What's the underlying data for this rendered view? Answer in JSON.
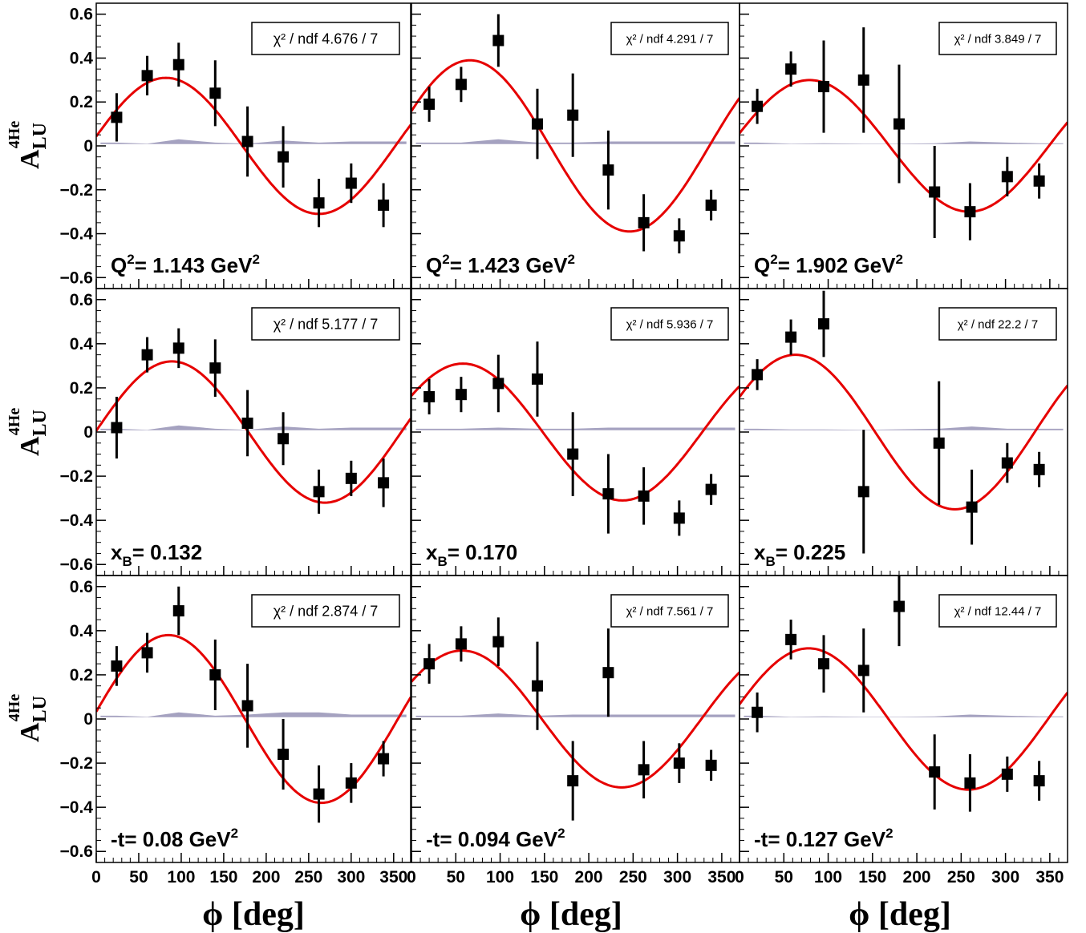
{
  "figure": {
    "x_axis_label": "ϕ [deg]",
    "y_axis_label": {
      "main": "A",
      "sub": "LU",
      "sup": "4He"
    }
  },
  "colors": {
    "fit": "#e60000",
    "points": "#000000",
    "systematics": "#a5a2c0",
    "frame": "#000000",
    "box_border": "#000000"
  },
  "chart_data": [
    {
      "type": "scatter",
      "row": 0,
      "col": 0,
      "bin_label": {
        "main": "Q",
        "sup": "2",
        "text": "= 1.143 GeV",
        "sup2": "2"
      },
      "fit_stat": {
        "label": "χ² / ndf",
        "value": "4.676 / 7"
      },
      "xlim": [
        0,
        370
      ],
      "ylim": [
        -0.65,
        0.65
      ],
      "x_ticks": [
        0,
        50,
        100,
        150,
        200,
        250,
        300,
        350
      ],
      "y_ticks": [
        -0.6,
        -0.4,
        -0.2,
        0,
        0.2,
        0.4,
        0.6
      ],
      "x": [
        24,
        60,
        97,
        140,
        178,
        220,
        262,
        300,
        338
      ],
      "y": [
        0.13,
        0.32,
        0.37,
        0.24,
        0.02,
        -0.05,
        -0.26,
        -0.17,
        -0.27
      ],
      "yerr": [
        0.11,
        0.09,
        0.1,
        0.15,
        0.16,
        0.14,
        0.11,
        0.09,
        0.1
      ],
      "fit": {
        "amplitude": 0.31,
        "peak_deg": 82
      },
      "systematics": [
        0.015,
        0.01,
        0.03,
        0.015,
        0.01,
        0.025,
        0.015,
        0.02,
        0.02
      ]
    },
    {
      "type": "scatter",
      "row": 0,
      "col": 1,
      "bin_label": {
        "main": "Q",
        "sup": "2",
        "text": "= 1.423 GeV",
        "sup2": "2"
      },
      "fit_stat": {
        "label": "χ² / ndf",
        "value": "4.291 / 7"
      },
      "xlim": [
        0,
        370
      ],
      "ylim": [
        -0.65,
        0.65
      ],
      "x_ticks": [
        0,
        50,
        100,
        150,
        200,
        250,
        300,
        350
      ],
      "y_ticks": [
        -0.6,
        -0.4,
        -0.2,
        0,
        0.2,
        0.4,
        0.6
      ],
      "x": [
        20,
        56,
        98,
        142,
        182,
        222,
        262,
        302,
        338
      ],
      "y": [
        0.19,
        0.28,
        0.48,
        0.1,
        0.14,
        -0.11,
        -0.35,
        -0.41,
        -0.27
      ],
      "yerr": [
        0.08,
        0.08,
        0.12,
        0.16,
        0.19,
        0.18,
        0.13,
        0.08,
        0.07
      ],
      "fit": {
        "amplitude": 0.39,
        "peak_deg": 66
      },
      "systematics": [
        0.015,
        0.015,
        0.03,
        0.015,
        0.015,
        0.02,
        0.02,
        0.02,
        0.02
      ]
    },
    {
      "type": "scatter",
      "row": 0,
      "col": 2,
      "bin_label": {
        "main": "Q",
        "sup": "2",
        "text": "= 1.902 GeV",
        "sup2": "2"
      },
      "fit_stat": {
        "label": "χ² / ndf",
        "value": "3.849 / 7"
      },
      "xlim": [
        0,
        370
      ],
      "ylim": [
        -0.65,
        0.65
      ],
      "x_ticks": [
        0,
        50,
        100,
        150,
        200,
        250,
        300,
        350
      ],
      "y_ticks": [
        -0.6,
        -0.4,
        -0.2,
        0,
        0.2,
        0.4,
        0.6
      ],
      "x": [
        20,
        58,
        95,
        140,
        180,
        220,
        260,
        302,
        338
      ],
      "y": [
        0.18,
        0.35,
        0.27,
        0.3,
        0.1,
        -0.21,
        -0.3,
        -0.14,
        -0.16
      ],
      "yerr": [
        0.08,
        0.08,
        0.21,
        0.24,
        0.27,
        0.21,
        0.13,
        0.09,
        0.08
      ],
      "fit": {
        "amplitude": 0.3,
        "peak_deg": 79
      },
      "systematics": [
        0.015,
        0.01,
        0.012,
        0.01,
        0.01,
        0.012,
        0.02,
        0.015,
        0.012
      ]
    },
    {
      "type": "scatter",
      "row": 1,
      "col": 0,
      "bin_label": {
        "main": "x",
        "sub": "B",
        "text": "= 0.132"
      },
      "fit_stat": {
        "label": "χ² / ndf",
        "value": "5.177 / 7"
      },
      "xlim": [
        0,
        370
      ],
      "ylim": [
        -0.65,
        0.65
      ],
      "x_ticks": [
        0,
        50,
        100,
        150,
        200,
        250,
        300,
        350
      ],
      "y_ticks": [
        -0.6,
        -0.4,
        -0.2,
        0,
        0.2,
        0.4,
        0.6
      ],
      "x": [
        24,
        60,
        97,
        140,
        178,
        220,
        262,
        300,
        338
      ],
      "y": [
        0.02,
        0.35,
        0.38,
        0.29,
        0.04,
        -0.03,
        -0.27,
        -0.21,
        -0.23
      ],
      "yerr": [
        0.14,
        0.08,
        0.09,
        0.13,
        0.15,
        0.12,
        0.1,
        0.08,
        0.11
      ],
      "fit": {
        "amplitude": 0.32,
        "peak_deg": 89
      },
      "systematics": [
        0.015,
        0.01,
        0.03,
        0.015,
        0.01,
        0.025,
        0.015,
        0.02,
        0.02
      ]
    },
    {
      "type": "scatter",
      "row": 1,
      "col": 1,
      "bin_label": {
        "main": "x",
        "sub": "B",
        "text": "= 0.170"
      },
      "fit_stat": {
        "label": "χ² / ndf",
        "value": "5.936 / 7"
      },
      "xlim": [
        0,
        370
      ],
      "ylim": [
        -0.65,
        0.65
      ],
      "x_ticks": [
        0,
        50,
        100,
        150,
        200,
        250,
        300,
        350
      ],
      "y_ticks": [
        -0.6,
        -0.4,
        -0.2,
        0,
        0.2,
        0.4,
        0.6
      ],
      "x": [
        20,
        56,
        98,
        142,
        182,
        222,
        262,
        302,
        338
      ],
      "y": [
        0.16,
        0.17,
        0.22,
        0.24,
        -0.1,
        -0.28,
        -0.29,
        -0.39,
        -0.26
      ],
      "yerr": [
        0.08,
        0.08,
        0.13,
        0.17,
        0.19,
        0.18,
        0.13,
        0.08,
        0.07
      ],
      "fit": {
        "amplitude": 0.31,
        "peak_deg": 58
      },
      "systematics": [
        0.015,
        0.015,
        0.02,
        0.015,
        0.015,
        0.02,
        0.02,
        0.02,
        0.02
      ]
    },
    {
      "type": "scatter",
      "row": 1,
      "col": 2,
      "bin_label": {
        "main": "x",
        "sub": "B",
        "text": "= 0.225"
      },
      "fit_stat": {
        "label": "χ² / ndf",
        "value": "22.2 / 7"
      },
      "xlim": [
        0,
        370
      ],
      "ylim": [
        -0.65,
        0.65
      ],
      "x_ticks": [
        0,
        50,
        100,
        150,
        200,
        250,
        300,
        350
      ],
      "y_ticks": [
        -0.6,
        -0.4,
        -0.2,
        0,
        0.2,
        0.4,
        0.6
      ],
      "x": [
        20,
        58,
        95,
        140,
        225,
        262,
        302,
        338
      ],
      "y": [
        0.26,
        0.43,
        0.49,
        -0.27,
        -0.05,
        -0.34,
        -0.14,
        -0.17
      ],
      "yerr": [
        0.07,
        0.08,
        0.15,
        0.28,
        0.28,
        0.17,
        0.09,
        0.08
      ],
      "fit": {
        "amplitude": 0.35,
        "peak_deg": 63
      },
      "systematics": [
        0.015,
        0.012,
        0.012,
        0.01,
        0.015,
        0.025,
        0.015,
        0.015
      ]
    },
    {
      "type": "scatter",
      "row": 2,
      "col": 0,
      "bin_label": {
        "main": "-t",
        "text": "= 0.08 GeV",
        "sup2": "2"
      },
      "fit_stat": {
        "label": "χ² / ndf",
        "value": "2.874 / 7"
      },
      "xlim": [
        0,
        370
      ],
      "ylim": [
        -0.65,
        0.65
      ],
      "x_ticks": [
        0,
        50,
        100,
        150,
        200,
        250,
        300,
        350
      ],
      "y_ticks": [
        -0.6,
        -0.4,
        -0.2,
        0,
        0.2,
        0.4,
        0.6
      ],
      "x": [
        24,
        60,
        97,
        140,
        178,
        220,
        262,
        300,
        338
      ],
      "y": [
        0.24,
        0.3,
        0.49,
        0.2,
        0.06,
        -0.16,
        -0.34,
        -0.29,
        -0.18
      ],
      "yerr": [
        0.09,
        0.09,
        0.11,
        0.16,
        0.19,
        0.16,
        0.13,
        0.09,
        0.08
      ],
      "fit": {
        "amplitude": 0.38,
        "peak_deg": 85
      },
      "systematics": [
        0.015,
        0.01,
        0.03,
        0.015,
        0.02,
        0.03,
        0.03,
        0.02,
        0.02
      ]
    },
    {
      "type": "scatter",
      "row": 2,
      "col": 1,
      "bin_label": {
        "main": "-t",
        "text": "= 0.094 GeV",
        "sup2": "2"
      },
      "fit_stat": {
        "label": "χ² / ndf",
        "value": "7.561 / 7"
      },
      "xlim": [
        0,
        370
      ],
      "ylim": [
        -0.65,
        0.65
      ],
      "x_ticks": [
        0,
        50,
        100,
        150,
        200,
        250,
        300,
        350
      ],
      "y_ticks": [
        -0.6,
        -0.4,
        -0.2,
        0,
        0.2,
        0.4,
        0.6
      ],
      "x": [
        20,
        56,
        98,
        142,
        182,
        222,
        262,
        302,
        338
      ],
      "y": [
        0.25,
        0.34,
        0.35,
        0.15,
        -0.28,
        0.21,
        -0.23,
        -0.2,
        -0.21
      ],
      "yerr": [
        0.09,
        0.08,
        0.11,
        0.2,
        0.18,
        0.2,
        0.13,
        0.09,
        0.07
      ],
      "fit": {
        "amplitude": 0.31,
        "peak_deg": 57
      },
      "systematics": [
        0.015,
        0.015,
        0.025,
        0.015,
        0.02,
        0.02,
        0.02,
        0.02,
        0.02
      ]
    },
    {
      "type": "scatter",
      "row": 2,
      "col": 2,
      "bin_label": {
        "main": "-t",
        "text": "= 0.127 GeV",
        "sup2": "2"
      },
      "fit_stat": {
        "label": "χ² / ndf",
        "value": "12.44 / 7"
      },
      "xlim": [
        0,
        370
      ],
      "ylim": [
        -0.65,
        0.65
      ],
      "x_ticks": [
        0,
        50,
        100,
        150,
        200,
        250,
        300,
        350
      ],
      "y_ticks": [
        -0.6,
        -0.4,
        -0.2,
        0,
        0.2,
        0.4,
        0.6
      ],
      "x": [
        20,
        58,
        95,
        140,
        180,
        220,
        260,
        302,
        338
      ],
      "y": [
        0.03,
        0.36,
        0.25,
        0.22,
        0.51,
        -0.24,
        -0.29,
        -0.25,
        -0.28
      ],
      "yerr": [
        0.09,
        0.09,
        0.13,
        0.19,
        0.18,
        0.17,
        0.13,
        0.08,
        0.09
      ],
      "fit": {
        "amplitude": 0.32,
        "peak_deg": 78
      },
      "systematics": [
        0.015,
        0.01,
        0.012,
        0.01,
        0.01,
        0.012,
        0.02,
        0.015,
        0.012
      ]
    }
  ]
}
